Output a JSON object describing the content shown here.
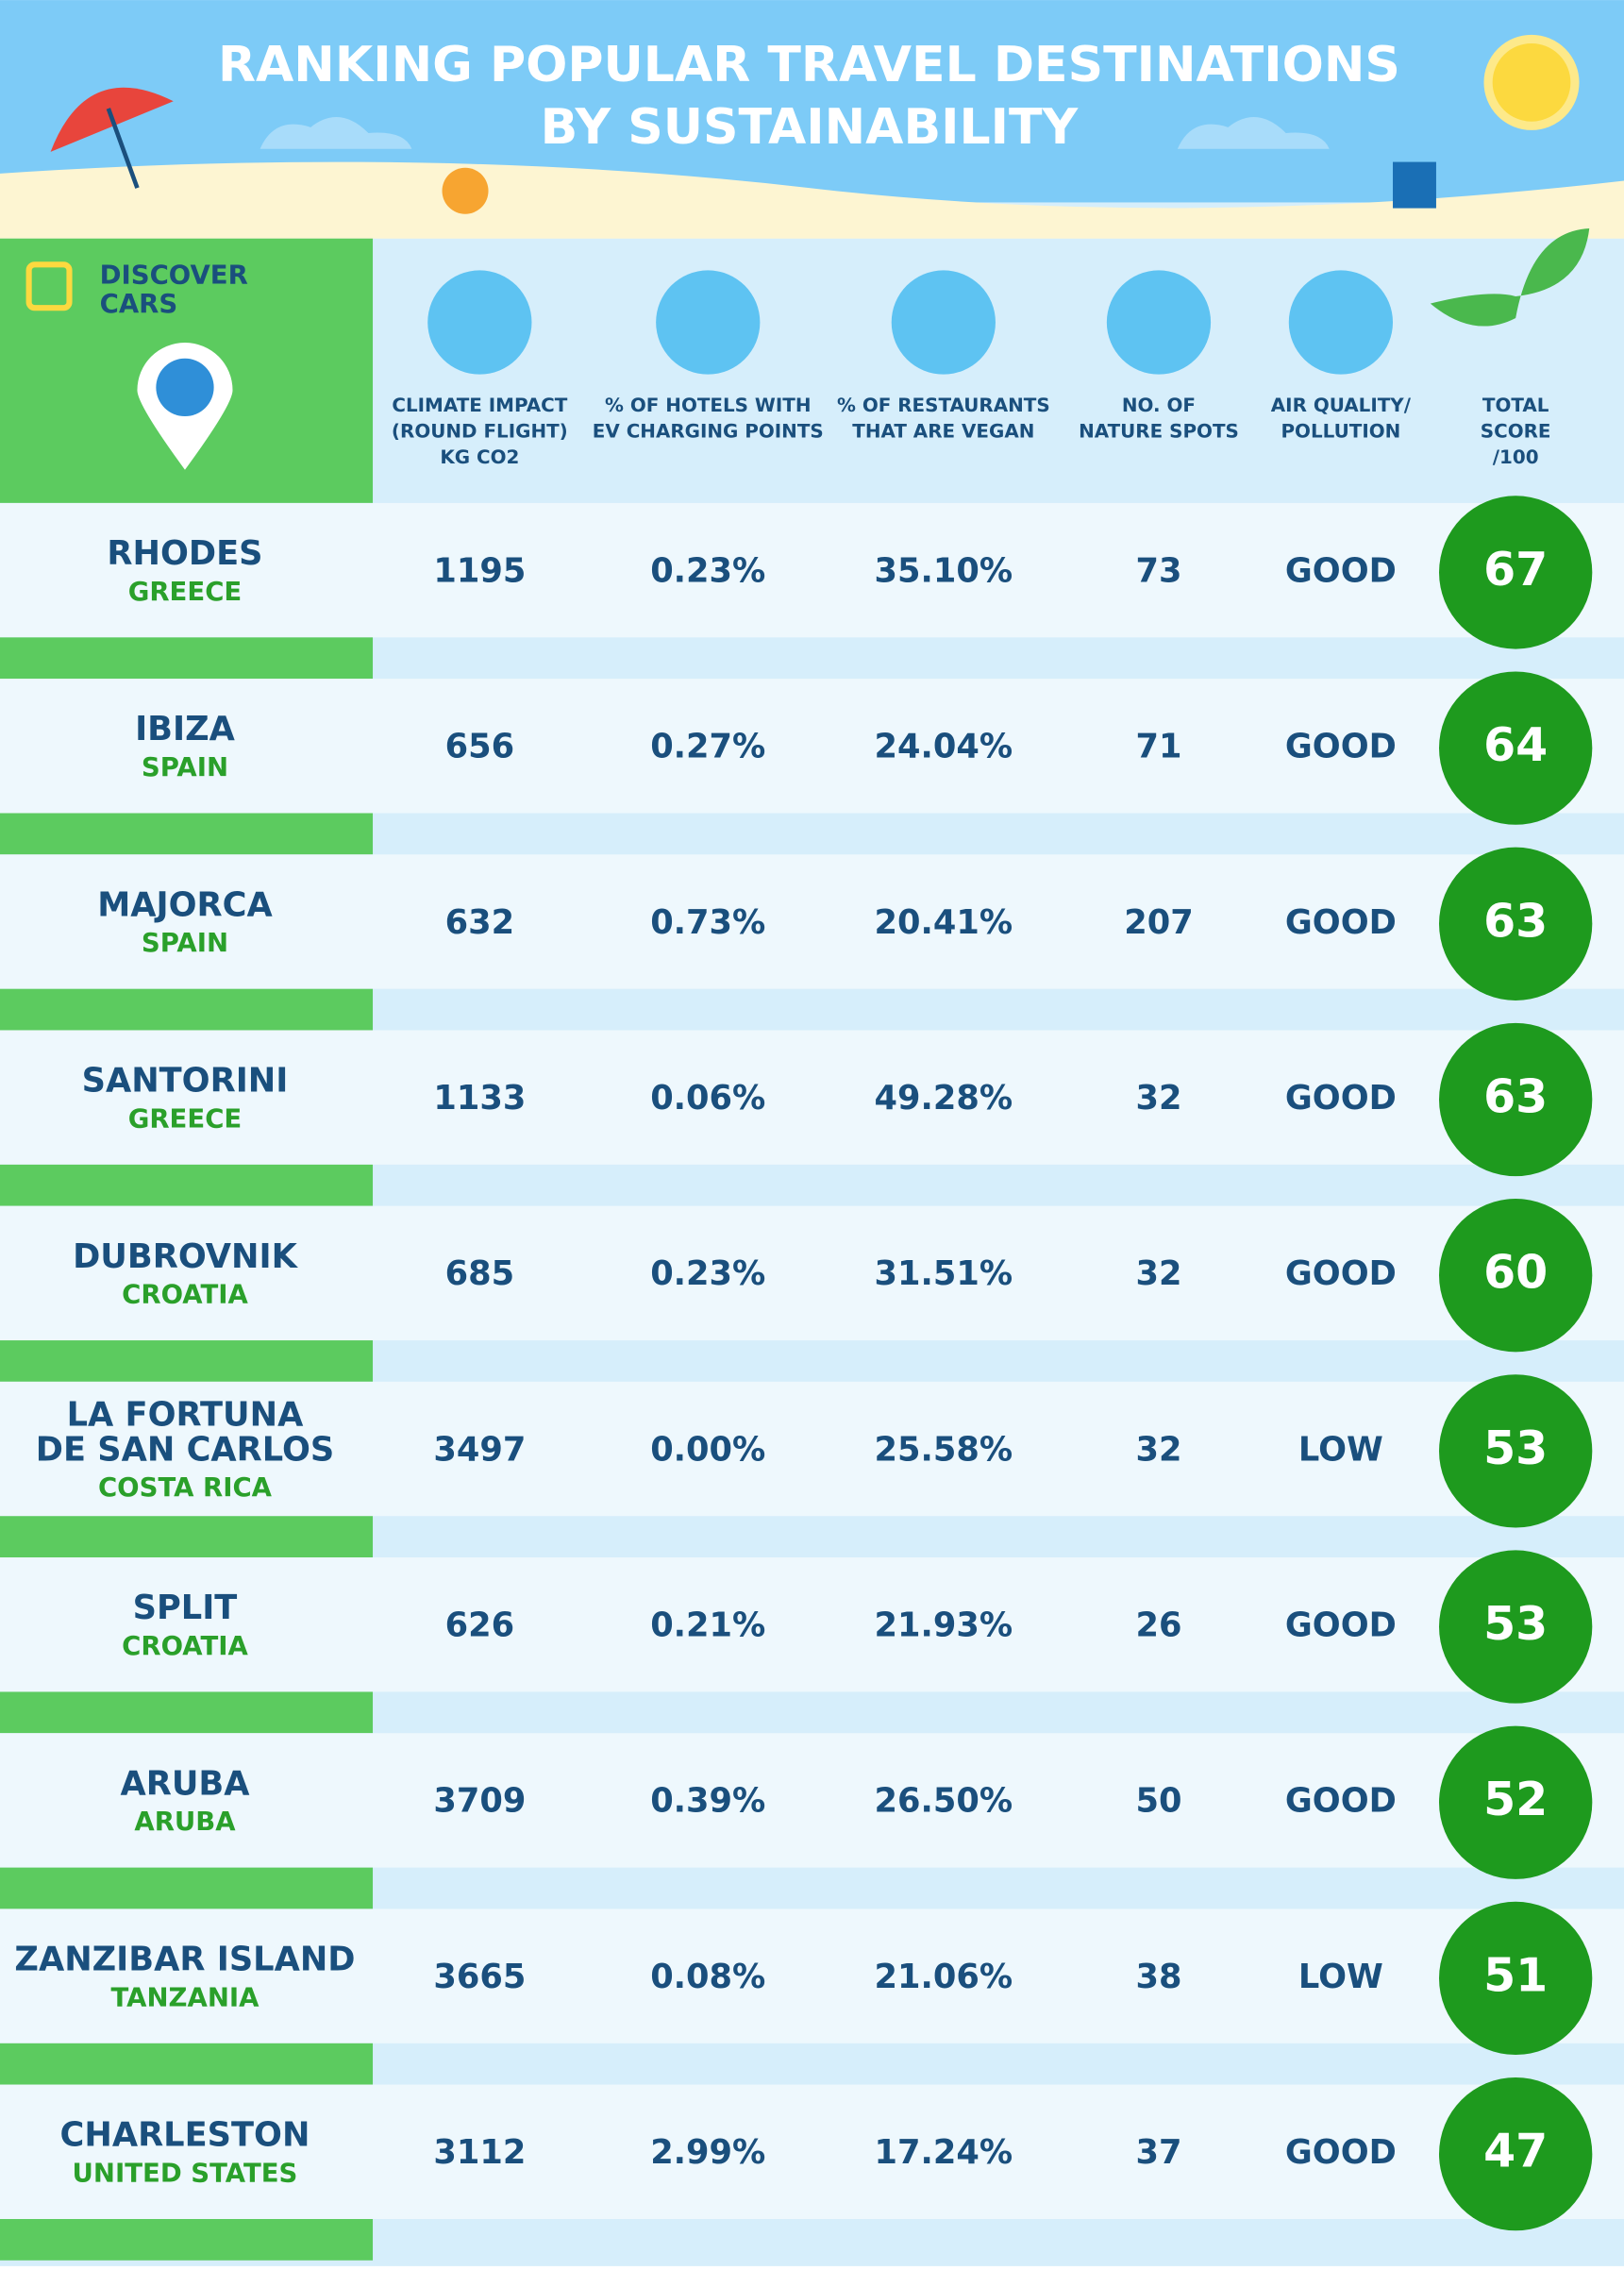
{
  "header": {
    "title": [
      "RANKING POPULAR TRAVEL DESTINATIONS",
      "BY SUSTAINABILITY"
    ]
  },
  "brand": [
    "DISCOVER",
    "CARS"
  ],
  "table": {
    "columns": [
      [
        "CLIMATE IMPACT",
        "(ROUND FLIGHT)",
        "KG CO2"
      ],
      [
        "% OF HOTELS WITH",
        "EV CHARGING POINTS"
      ],
      [
        "% OF RESTAURANTS",
        "THAT ARE VEGAN"
      ],
      [
        "NO. OF",
        "NATURE SPOTS"
      ],
      [
        "AIR QUALITY/",
        "POLLUTION"
      ],
      [
        "TOTAL",
        "SCORE",
        "/100"
      ]
    ],
    "rows": [
      {
        "name": [
          "RHODES"
        ],
        "country": "GREECE",
        "cells": [
          "1195",
          "0.23%",
          "35.10%",
          "73",
          "GOOD"
        ],
        "score": 67
      },
      {
        "name": [
          "IBIZA"
        ],
        "country": "SPAIN",
        "cells": [
          "656",
          "0.27%",
          "24.04%",
          "71",
          "GOOD"
        ],
        "score": 64
      },
      {
        "name": [
          "MAJORCA"
        ],
        "country": "SPAIN",
        "cells": [
          "632",
          "0.73%",
          "20.41%",
          "207",
          "GOOD"
        ],
        "score": 63
      },
      {
        "name": [
          "SANTORINI"
        ],
        "country": "GREECE",
        "cells": [
          "1133",
          "0.06%",
          "49.28%",
          "32",
          "GOOD"
        ],
        "score": 63
      },
      {
        "name": [
          "DUBROVNIK"
        ],
        "country": "CROATIA",
        "cells": [
          "685",
          "0.23%",
          "31.51%",
          "32",
          "GOOD"
        ],
        "score": 60
      },
      {
        "name": [
          "LA FORTUNA",
          "DE SAN CARLOS"
        ],
        "country": "COSTA RICA",
        "cells": [
          "3497",
          "0.00%",
          "25.58%",
          "32",
          "LOW"
        ],
        "score": 53
      },
      {
        "name": [
          "SPLIT"
        ],
        "country": "CROATIA",
        "cells": [
          "626",
          "0.21%",
          "21.93%",
          "26",
          "GOOD"
        ],
        "score": 53
      },
      {
        "name": [
          "ARUBA"
        ],
        "country": "ARUBA",
        "cells": [
          "3709",
          "0.39%",
          "26.50%",
          "50",
          "GOOD"
        ],
        "score": 52
      },
      {
        "name": [
          "ZANZIBAR ISLAND"
        ],
        "country": "TANZANIA",
        "cells": [
          "3665",
          "0.08%",
          "21.06%",
          "38",
          "LOW"
        ],
        "score": 51
      },
      {
        "name": [
          "CHARLESTON"
        ],
        "country": "UNITED STATES",
        "cells": [
          "3112",
          "2.99%",
          "17.24%",
          "37",
          "GOOD"
        ],
        "score": 47
      }
    ]
  }
}
